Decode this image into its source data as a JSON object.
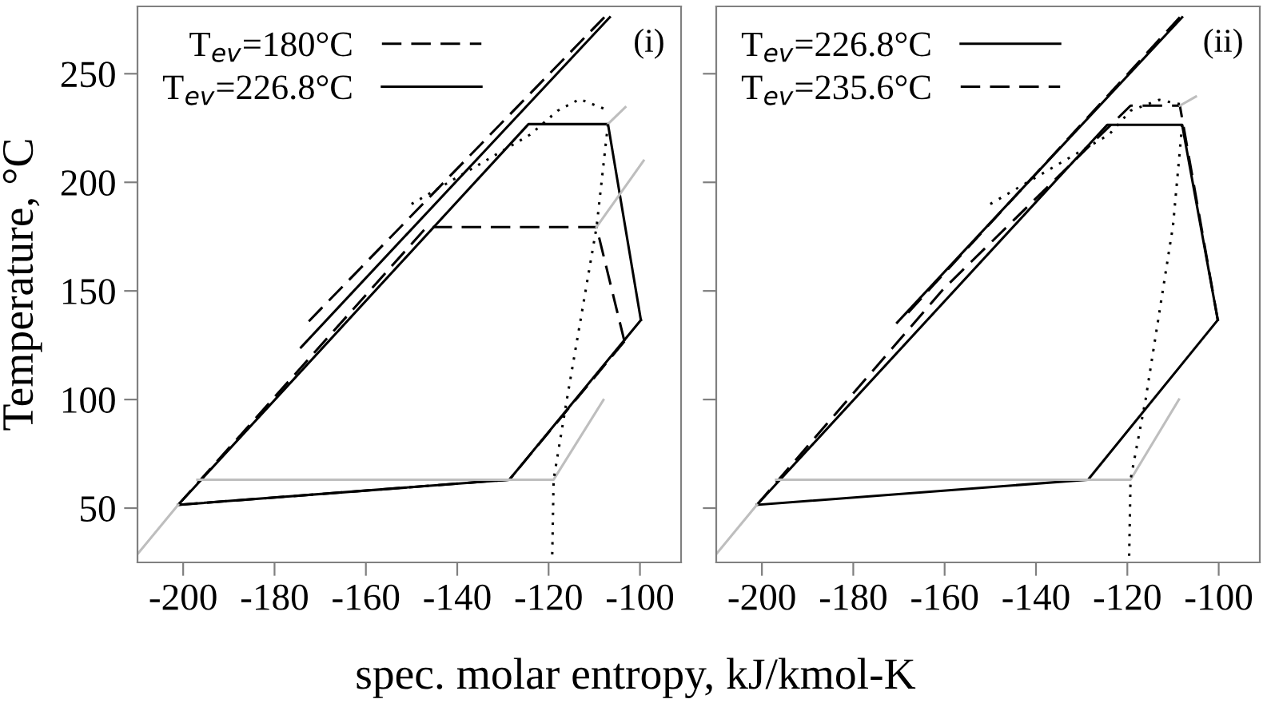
{
  "chart_data": [
    {
      "type": "line",
      "ylabel": "Temperature, °C",
      "xlabel": "spec. molar entropy, kJ/kmol-K",
      "xlim": [
        -210,
        -91
      ],
      "ylim": [
        25,
        281
      ],
      "xticks": [
        -200,
        -180,
        -160,
        -140,
        -120,
        -100
      ],
      "yticks": [
        50,
        100,
        150,
        200,
        250
      ],
      "grid": false,
      "legend": "top left",
      "annotations": [
        "(i)"
      ],
      "series": [
        {
          "name": "T$_{ev}$=180°C",
          "color": "#000000",
          "line_style": "dashed",
          "x": [
            -201.1,
            -146.7,
            -109.5,
            -103.4
          ],
          "values": [
            51.5,
            179.4,
            179.4,
            126.8
          ]
        },
        {
          "name": "T$_{ev}$=226.8°C",
          "color": "#000000",
          "line_style": "solid",
          "x": [
            -201.1,
            -124.4,
            -107,
            -99.8
          ],
          "values": [
            51.5,
            226.8,
            226.8,
            136.6
          ]
        },
        {
          "color": "#000000",
          "line_style": "dashed",
          "x": [
            -201.1,
            -128.6,
            -103.4
          ],
          "values": [
            51.5,
            63.1,
            126.8
          ]
        },
        {
          "color": "#000000",
          "line_style": "solid",
          "x": [
            -201.1,
            -128.6,
            -99.8
          ],
          "values": [
            51.5,
            63.1,
            136.6
          ]
        },
        {
          "color": "#000000",
          "line_style": "dashed",
          "x": [
            -172.5,
            -107.8
          ],
          "values": [
            136,
            276
          ]
        },
        {
          "color": "#000000",
          "line_style": "solid",
          "x": [
            -174.2,
            -106.6
          ],
          "values": [
            124,
            276
          ]
        },
        {
          "color": "#bebebe",
          "line_style": "solid",
          "x": [
            -210,
            -201.1
          ],
          "values": [
            28.8,
            51.5
          ]
        },
        {
          "color": "#bebebe",
          "line_style": "solid",
          "x": [
            -196.9,
            -118.9,
            -108
          ],
          "values": [
            63.1,
            63.1,
            99.8
          ]
        },
        {
          "color": "#bebebe",
          "line_style": "solid",
          "x": [
            -109.5,
            -99.2
          ],
          "values": [
            179.4,
            210
          ]
        },
        {
          "color": "#bebebe",
          "line_style": "solid",
          "x": [
            -107,
            -103.2
          ],
          "values": [
            226.8,
            234.6
          ]
        },
        {
          "color": "#000000",
          "line_style": "dotted",
          "x": [
            -150,
            -124,
            -118,
            -113.2,
            -108
          ],
          "values": [
            190,
            222,
            233,
            238.3,
            234
          ]
        },
        {
          "color": "#000000",
          "line_style": "dotted",
          "x": [
            -107,
            -109.5,
            -116,
            -118.9,
            -119.2
          ],
          "values": [
            226.8,
            179.4,
            100,
            63.1,
            28.7
          ]
        }
      ]
    },
    {
      "type": "line",
      "xlim": [
        -210,
        -91
      ],
      "ylim": [
        25,
        281
      ],
      "xticks": [
        -200,
        -180,
        -160,
        -140,
        -120,
        -100
      ],
      "yticks": [
        50,
        100,
        150,
        200,
        250
      ],
      "grid": false,
      "legend": "top left",
      "tick_labels": "x",
      "annotations": [
        "(ii)"
      ],
      "series": [
        {
          "name": "T$_{ev}$=226.8°C",
          "color": "#000000",
          "line_style": "solid",
          "x": [
            -201.1,
            -124.4,
            -108,
            -100.2
          ],
          "values": [
            51.5,
            226.5,
            226.5,
            136.6
          ]
        },
        {
          "name": "T$_{ev}$=235.6°C",
          "color": "#000000",
          "line_style": "dashed",
          "x": [
            -201.1,
            -160.2,
            -119.3,
            -108.5,
            -100.2
          ],
          "values": [
            51.5,
            151,
            235.3,
            235.3,
            136.6
          ]
        },
        {
          "color": "#000000",
          "line_style": "solid",
          "x": [
            -201.1,
            -128.6,
            -100.2
          ],
          "values": [
            51.5,
            63.1,
            136.6
          ]
        },
        {
          "color": "#000000",
          "line_style": "solid",
          "x": [
            -170.4,
            -108
          ],
          "values": [
            135.4,
            276
          ]
        },
        {
          "color": "#000000",
          "line_style": "dashed",
          "x": [
            -168,
            -108.5
          ],
          "values": [
            140,
            276
          ]
        },
        {
          "color": "#bebebe",
          "line_style": "solid",
          "x": [
            -210,
            -201.1
          ],
          "values": [
            28.8,
            51.5
          ]
        },
        {
          "color": "#bebebe",
          "line_style": "solid",
          "x": [
            -196.9,
            -119.3,
            -108.7
          ],
          "values": [
            63.1,
            63.1,
            100
          ]
        },
        {
          "color": "#bebebe",
          "line_style": "solid",
          "x": [
            -108.5,
            -105
          ],
          "values": [
            235.3,
            239.5
          ]
        },
        {
          "color": "#000000",
          "line_style": "dotted",
          "x": [
            -150,
            -124,
            -119.3,
            -113,
            -108.5
          ],
          "values": [
            190,
            222,
            233,
            238,
            236
          ]
        },
        {
          "color": "#000000",
          "line_style": "dotted",
          "x": [
            -108,
            -110,
            -116,
            -119.3,
            -119.6
          ],
          "values": [
            226.5,
            180,
            100,
            63.1,
            28
          ]
        }
      ]
    }
  ]
}
